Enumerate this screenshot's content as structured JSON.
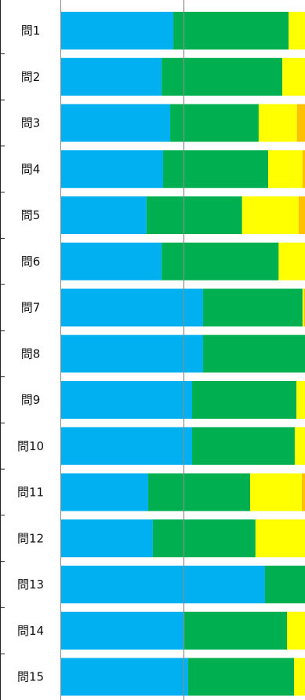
{
  "chart_data": {
    "type": "bar",
    "orientation": "horizontal",
    "stacked": true,
    "categories": [
      "問1",
      "問2",
      "問3",
      "問4",
      "問5",
      "問6",
      "問7",
      "問8",
      "問9",
      "問10",
      "問11",
      "問12",
      "問13",
      "問14",
      "問15"
    ],
    "series": [
      {
        "color": "#00B0F0",
        "values": [
          46.0,
          41.2,
          44.7,
          41.8,
          35.0,
          41.2,
          58.2,
          58.2,
          53.7,
          53.7,
          35.7,
          37.6,
          83.6,
          50.5,
          52.1
        ]
      },
      {
        "color": "#00B050",
        "values": [
          47.3,
          49.5,
          36.3,
          43.1,
          39.2,
          48.0,
          40.8,
          41.8,
          42.8,
          42.1,
          41.8,
          42.1,
          16.4,
          42.1,
          43.4
        ]
      },
      {
        "color": "#FFFF00",
        "values": [
          6.7,
          9.3,
          15.7,
          14.1,
          23.2,
          10.8,
          0.6,
          0.0,
          3.5,
          4.2,
          21.2,
          20.3,
          0.0,
          7.4,
          4.5
        ]
      },
      {
        "color": "#FFC000",
        "values": [
          0.0,
          0.0,
          3.3,
          1.0,
          2.6,
          0.0,
          0.4,
          0.0,
          0.0,
          0.0,
          1.3,
          0.0,
          0.0,
          0.0,
          0.0
        ]
      }
    ],
    "xlim": [
      0,
      100
    ],
    "grid": "vertical gridline at 50%",
    "legend": "none"
  }
}
